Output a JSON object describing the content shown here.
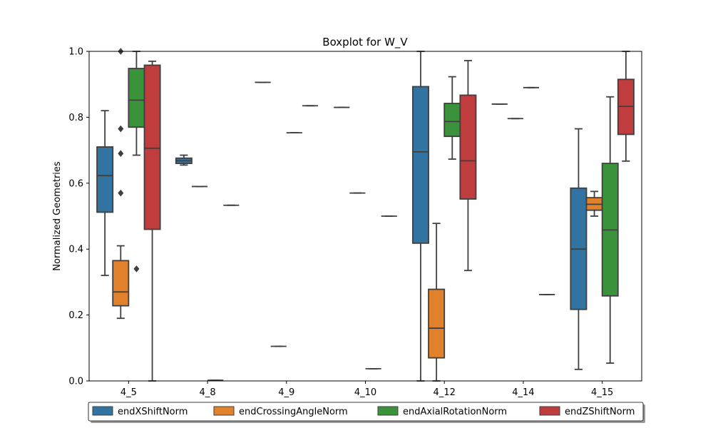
{
  "chart_data": {
    "type": "boxplot",
    "title": "Boxplot for W_V",
    "xlabel": "",
    "ylabel": "Normalized Geometries",
    "ylim": [
      0,
      1
    ],
    "yticks": [
      0.0,
      0.2,
      0.4,
      0.6,
      0.8,
      1.0
    ],
    "ytick_labels": [
      "0.0",
      "0.2",
      "0.4",
      "0.6",
      "0.8",
      "1.0"
    ],
    "categories": [
      "4_5",
      "4_8",
      "4_9",
      "4_10",
      "4_12",
      "4_14",
      "4_15"
    ],
    "legend_position": "bottom-center",
    "series": [
      {
        "name": "endXShiftNorm",
        "color": "#3274a1",
        "boxes": [
          {
            "min": 0.32,
            "q1": 0.512,
            "median": 0.623,
            "q3": 0.71,
            "max": 0.82,
            "outliers": []
          },
          {
            "min": 0.655,
            "q1": 0.66,
            "median": 0.668,
            "q3": 0.676,
            "max": 0.685,
            "outliers": []
          },
          {
            "min": 0.906,
            "q1": 0.906,
            "median": 0.906,
            "q3": 0.906,
            "max": 0.906,
            "outliers": []
          },
          {
            "min": 0.83,
            "q1": 0.83,
            "median": 0.83,
            "q3": 0.83,
            "max": 0.83,
            "outliers": []
          },
          {
            "min": 0.0,
            "q1": 0.418,
            "median": 0.695,
            "q3": 0.893,
            "max": 1.0,
            "outliers": []
          },
          {
            "min": 0.84,
            "q1": 0.84,
            "median": 0.84,
            "q3": 0.84,
            "max": 0.84,
            "outliers": []
          },
          {
            "min": 0.035,
            "q1": 0.217,
            "median": 0.4,
            "q3": 0.585,
            "max": 0.765,
            "outliers": []
          }
        ]
      },
      {
        "name": "endCrossingAngleNorm",
        "color": "#e1812c",
        "boxes": [
          {
            "min": 0.19,
            "q1": 0.228,
            "median": 0.27,
            "q3": 0.365,
            "max": 0.41,
            "outliers": [
              0.57,
              0.69,
              0.765,
              1.0
            ]
          },
          {
            "min": 0.59,
            "q1": 0.59,
            "median": 0.59,
            "q3": 0.59,
            "max": 0.59,
            "outliers": []
          },
          {
            "min": 0.105,
            "q1": 0.105,
            "median": 0.105,
            "q3": 0.105,
            "max": 0.105,
            "outliers": []
          },
          {
            "min": 0.57,
            "q1": 0.57,
            "median": 0.57,
            "q3": 0.57,
            "max": 0.57,
            "outliers": []
          },
          {
            "min": 0.0,
            "q1": 0.07,
            "median": 0.16,
            "q3": 0.278,
            "max": 0.478,
            "outliers": []
          },
          {
            "min": 0.796,
            "q1": 0.796,
            "median": 0.796,
            "q3": 0.796,
            "max": 0.796,
            "outliers": []
          },
          {
            "min": 0.5,
            "q1": 0.518,
            "median": 0.536,
            "q3": 0.556,
            "max": 0.575,
            "outliers": []
          }
        ]
      },
      {
        "name": "endAxialRotationNorm",
        "color": "#3a923a",
        "boxes": [
          {
            "min": 0.685,
            "q1": 0.77,
            "median": 0.852,
            "q3": 0.948,
            "max": 1.0,
            "outliers": [
              0.34
            ]
          },
          {
            "min": 0.002,
            "q1": 0.002,
            "median": 0.002,
            "q3": 0.002,
            "max": 0.002,
            "outliers": []
          },
          {
            "min": 0.753,
            "q1": 0.753,
            "median": 0.753,
            "q3": 0.753,
            "max": 0.753,
            "outliers": []
          },
          {
            "min": 0.037,
            "q1": 0.037,
            "median": 0.037,
            "q3": 0.037,
            "max": 0.037,
            "outliers": []
          },
          {
            "min": 0.673,
            "q1": 0.742,
            "median": 0.787,
            "q3": 0.842,
            "max": 0.923,
            "outliers": []
          },
          {
            "min": 0.89,
            "q1": 0.89,
            "median": 0.89,
            "q3": 0.89,
            "max": 0.89,
            "outliers": []
          },
          {
            "min": 0.054,
            "q1": 0.258,
            "median": 0.458,
            "q3": 0.66,
            "max": 0.862,
            "outliers": []
          }
        ]
      },
      {
        "name": "endZShiftNorm",
        "color": "#c03d3e",
        "boxes": [
          {
            "min": 0.0,
            "q1": 0.46,
            "median": 0.706,
            "q3": 0.958,
            "max": 0.97,
            "outliers": []
          },
          {
            "min": 0.533,
            "q1": 0.533,
            "median": 0.533,
            "q3": 0.533,
            "max": 0.533,
            "outliers": []
          },
          {
            "min": 0.835,
            "q1": 0.835,
            "median": 0.835,
            "q3": 0.835,
            "max": 0.835,
            "outliers": []
          },
          {
            "min": 0.5,
            "q1": 0.5,
            "median": 0.5,
            "q3": 0.5,
            "max": 0.5,
            "outliers": []
          },
          {
            "min": 0.335,
            "q1": 0.552,
            "median": 0.668,
            "q3": 0.867,
            "max": 0.972,
            "outliers": []
          },
          {
            "min": 0.262,
            "q1": 0.262,
            "median": 0.262,
            "q3": 0.262,
            "max": 0.262,
            "outliers": []
          },
          {
            "min": 0.667,
            "q1": 0.748,
            "median": 0.833,
            "q3": 0.915,
            "max": 1.0,
            "outliers": []
          }
        ]
      }
    ]
  }
}
